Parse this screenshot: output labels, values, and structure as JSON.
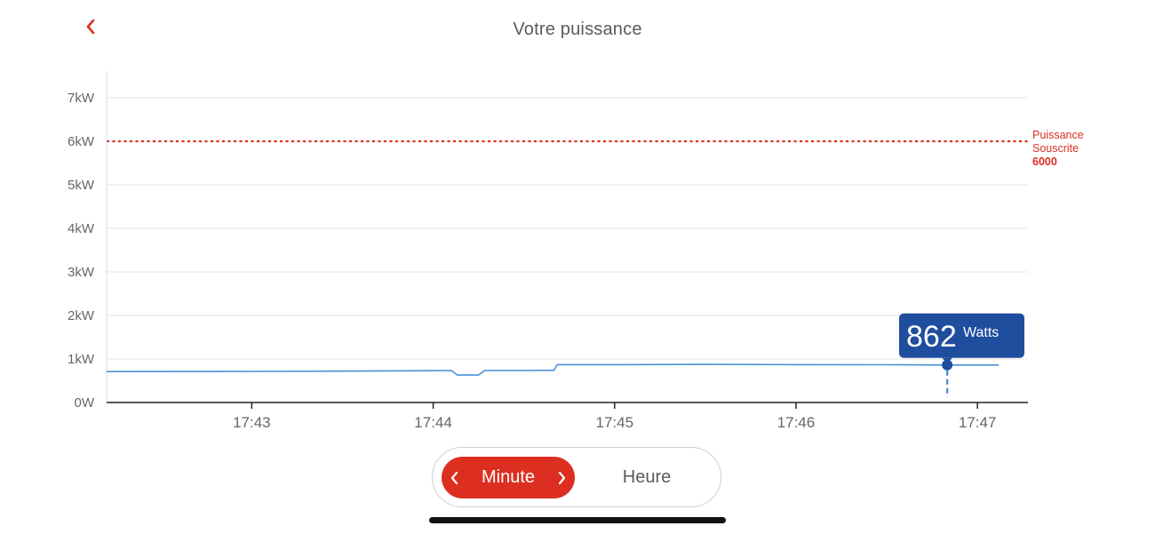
{
  "header": {
    "title": "Votre puissance",
    "back_icon": "chevron-left-icon"
  },
  "colors": {
    "accent": "#dc2f22",
    "line": "#4a90d9",
    "tooltip": "#1f4e9e",
    "grid": "#e4e4e4"
  },
  "chart_data": {
    "type": "line",
    "ylim": [
      0,
      7000
    ],
    "yticks": [
      {
        "value": 0,
        "label": "0W"
      },
      {
        "value": 1000,
        "label": "1kW"
      },
      {
        "value": 2000,
        "label": "2kW"
      },
      {
        "value": 3000,
        "label": "3kW"
      },
      {
        "value": 4000,
        "label": "4kW"
      },
      {
        "value": 5000,
        "label": "5kW"
      },
      {
        "value": 6000,
        "label": "6kW"
      },
      {
        "value": 7000,
        "label": "7kW"
      }
    ],
    "xlim": [
      "17:42:12",
      "17:47:12"
    ],
    "xticks": [
      "17:43",
      "17:44",
      "17:45",
      "17:46",
      "17:47"
    ],
    "grid": true,
    "series": [
      {
        "x": [
          "17:42:12",
          "17:43:00",
          "17:43:30",
          "17:44:00",
          "17:44:06",
          "17:44:08",
          "17:44:15",
          "17:44:17",
          "17:44:30",
          "17:44:40",
          "17:44:41",
          "17:45:00",
          "17:45:30",
          "17:46:00",
          "17:46:30",
          "17:46:50",
          "17:47:07"
        ],
        "y": [
          710,
          715,
          720,
          730,
          735,
          630,
          630,
          735,
          735,
          740,
          870,
          870,
          875,
          870,
          868,
          862,
          862
        ]
      }
    ],
    "threshold": {
      "value": 6000,
      "label_line1": "Puissance",
      "label_line2": "Souscrite",
      "value_label": "6000"
    },
    "marker": {
      "x": "17:46:50",
      "y": 862,
      "value_label": "862",
      "unit_label": "Watts"
    }
  },
  "period_selector": {
    "active_label": "Minute",
    "inactive_label": "Heure",
    "prev_icon": "chevron-left-icon",
    "next_icon": "chevron-right-icon"
  }
}
